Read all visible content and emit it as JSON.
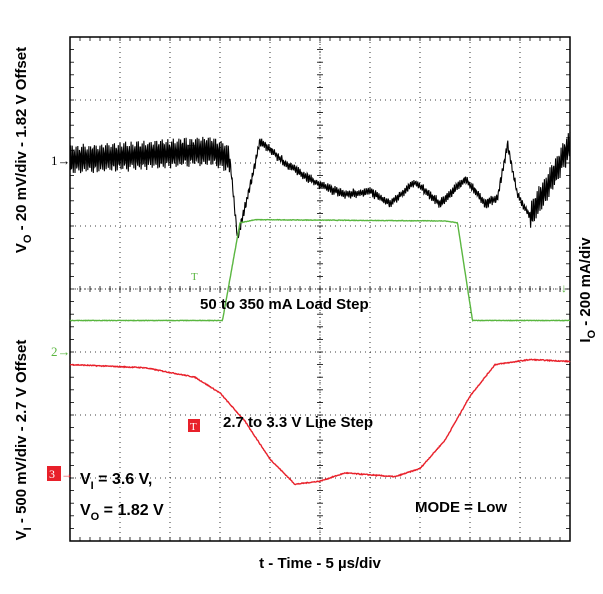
{
  "chart_data": {
    "type": "line",
    "xlabel": "t - Time - 5 µs/div",
    "ylabel_left_top": "VO - 20 mV/div - 1.82 V Offset",
    "ylabel_left_bottom": "VI - 500 mV/div - 2.7 V Offset",
    "ylabel_right": "IO - 200 mA/div",
    "grid": true,
    "divisions": {
      "x": 10,
      "y": 8
    },
    "xlim": [
      0,
      50
    ],
    "series": [
      {
        "name": "VO",
        "color": "#000000",
        "marker": "1",
        "note": "",
        "points_div": [
          [
            0.0,
            6.05
          ],
          [
            1.0,
            6.1
          ],
          [
            2.0,
            6.15
          ],
          [
            2.8,
            6.2
          ],
          [
            3.2,
            6.05
          ],
          [
            3.35,
            4.8
          ],
          [
            3.5,
            5.3
          ],
          [
            3.65,
            5.8
          ],
          [
            3.8,
            6.35
          ],
          [
            4.3,
            6.0
          ],
          [
            5.0,
            5.65
          ],
          [
            5.5,
            5.5
          ],
          [
            6.0,
            5.55
          ],
          [
            6.4,
            5.35
          ],
          [
            6.9,
            5.7
          ],
          [
            7.4,
            5.35
          ],
          [
            7.9,
            5.75
          ],
          [
            8.3,
            5.35
          ],
          [
            8.55,
            5.45
          ],
          [
            8.75,
            6.3
          ],
          [
            8.95,
            5.5
          ],
          [
            9.2,
            5.15
          ],
          [
            9.6,
            5.7
          ],
          [
            10.0,
            6.3
          ]
        ]
      },
      {
        "name": "IO",
        "color": "#5ab640",
        "marker": "2",
        "annotation": "50 to 350 mA Load Step",
        "points_div": [
          [
            0.0,
            3.5
          ],
          [
            3.05,
            3.5
          ],
          [
            3.4,
            5.05
          ],
          [
            3.7,
            5.1
          ],
          [
            7.5,
            5.08
          ],
          [
            7.75,
            5.05
          ],
          [
            8.05,
            3.5
          ],
          [
            10.0,
            3.5
          ]
        ]
      },
      {
        "name": "VI",
        "color": "#e8202a",
        "marker": "3",
        "annotation": "2.7 to 3.3 V Line Step",
        "points_div": [
          [
            0.0,
            2.8
          ],
          [
            1.5,
            2.75
          ],
          [
            2.5,
            2.6
          ],
          [
            3.0,
            2.35
          ],
          [
            3.5,
            1.9
          ],
          [
            4.0,
            1.3
          ],
          [
            4.5,
            0.9
          ],
          [
            5.0,
            0.95
          ],
          [
            5.5,
            1.08
          ],
          [
            6.0,
            1.05
          ],
          [
            6.5,
            1.02
          ],
          [
            7.0,
            1.15
          ],
          [
            7.5,
            1.6
          ],
          [
            8.0,
            2.3
          ],
          [
            8.5,
            2.8
          ],
          [
            9.2,
            2.88
          ],
          [
            10.0,
            2.85
          ]
        ]
      }
    ]
  },
  "annotations": {
    "load_step": "50 to 350 mA Load Step",
    "line_step": "2.7 to 3.3 V Line Step",
    "mode": "MODE = Low",
    "vi_cond": "V",
    "vi_cond_sub": "I",
    "vi_cond_val": " = 3.6 V,",
    "vo_cond": "V",
    "vo_cond_sub": "O",
    "vo_cond_val": " = 1.82 V"
  },
  "axis_text": {
    "x": "t - Time - 5 µs/div",
    "left_vi": "V",
    "left_vi_sub": "I",
    "left_vi_rest": " - 500 mV/div - 2.7 V Offset",
    "left_vo": "V",
    "left_vo_sub": "O",
    "left_vo_rest": " - 20 mV/div - 1.82 V Offset",
    "right_io": "I",
    "right_io_sub": "O",
    "right_io_rest": " - 200 mA/div"
  },
  "markers": {
    "ch1": "1",
    "ch2": "2",
    "ch3": "3",
    "trig": "T"
  },
  "colors": {
    "vo": "#000000",
    "io": "#5ab640",
    "vi": "#e8202a",
    "grid": "#000000"
  }
}
